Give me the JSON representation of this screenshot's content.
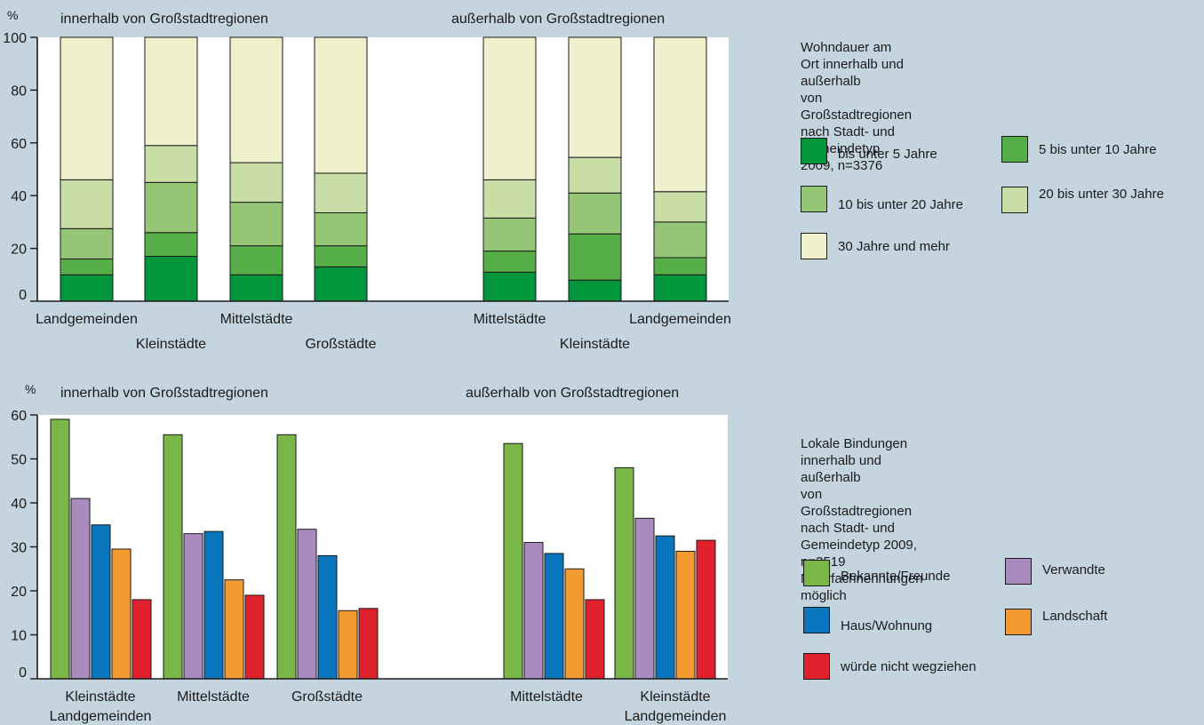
{
  "chart_data": [
    {
      "type": "bar",
      "stacked": true,
      "ylabel": "%",
      "ylim": [
        0,
        100
      ],
      "yticks": [
        0,
        20,
        40,
        60,
        80,
        100
      ],
      "group_labels": [
        "innerhalb von Großstadtregionen",
        "außerhalb von Großstadtregionen"
      ],
      "categories": [
        "Landgemeinden",
        "Kleinstädte",
        "Mittelstädte",
        "Großstädte",
        "Mittelstädte",
        "Kleinstädte",
        "Landgemeinden"
      ],
      "series": [
        {
          "name": "bis unter 5 Jahre",
          "color": "#009639",
          "values": [
            10,
            17,
            10,
            13,
            11,
            8,
            10
          ]
        },
        {
          "name": "5 bis unter 10 Jahre",
          "color": "#55ae47",
          "values": [
            6,
            9,
            11,
            8,
            8,
            17.5,
            6.5
          ]
        },
        {
          "name": "10 bis unter 20 Jahre",
          "color": "#94c675",
          "values": [
            11.5,
            19,
            16.5,
            12.5,
            12.5,
            15.5,
            13.5
          ]
        },
        {
          "name": "20 bis unter 30 Jahre",
          "color": "#c8dea6",
          "values": [
            18.5,
            14,
            15,
            15,
            14.5,
            13.5,
            11.5
          ]
        },
        {
          "name": "30 Jahre und mehr",
          "color": "#eef1cc",
          "values": [
            54,
            41,
            47.5,
            51.5,
            54,
            45.5,
            58.5
          ]
        }
      ],
      "legend_title": "Wohndauer am Ort innerhalb und außerhalb\nvon Großstadtregionen nach Stadt- und\nGemeindetyp 2009, n=3376"
    },
    {
      "type": "bar",
      "ylabel": "%",
      "ylim": [
        0,
        60
      ],
      "yticks": [
        0,
        10,
        20,
        30,
        40,
        50,
        60
      ],
      "group_labels": [
        "innerhalb von Großstadtregionen",
        "außerhalb von Großstadtregionen"
      ],
      "categories": [
        "Kleinstädte Landgemeinden",
        "Mittelstädte",
        "Großstädte",
        "Mittelstädte",
        "Kleinstädte Landgemeinden"
      ],
      "category_lines": [
        [
          "Kleinstädte",
          "Landgemeinden"
        ],
        [
          "Mittelstädte",
          ""
        ],
        [
          "Großstädte",
          ""
        ],
        [
          "Mittelstädte",
          ""
        ],
        [
          "Kleinstädte",
          "Landgemeinden"
        ]
      ],
      "series": [
        {
          "name": "Bekannte/Freunde",
          "color": "#7ab648",
          "values": [
            59,
            55.5,
            55.5,
            53.5,
            48
          ]
        },
        {
          "name": "Verwandte",
          "color": "#a98bbf",
          "values": [
            41,
            33,
            34,
            31,
            36.5
          ]
        },
        {
          "name": "Haus/Wohnung",
          "color": "#0a76bd",
          "values": [
            35,
            33.5,
            28,
            28.5,
            32.5
          ]
        },
        {
          "name": "Landschaft",
          "color": "#f39a32",
          "values": [
            29.5,
            22.5,
            15.5,
            25,
            29
          ]
        },
        {
          "name": "würde nicht wegziehen",
          "color": "#e1202e",
          "values": [
            18,
            19,
            16,
            18,
            31.5
          ]
        }
      ],
      "legend_title": "Lokale Bindungen innerhalb und außerhalb\nvon Großstadtregionen nach Stadt- und\nGemeindetyp 2009, n=3519\nMehrfachnennungen möglich"
    }
  ]
}
